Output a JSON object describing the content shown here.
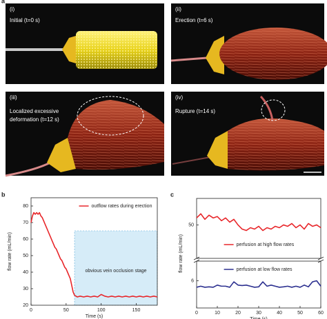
{
  "panel_labels": {
    "a": "a",
    "b": "b",
    "c": "c"
  },
  "photos": [
    {
      "label": "(i)",
      "caption": [
        "Initial (t=0 s)"
      ]
    },
    {
      "label": "(ii)",
      "caption": [
        "Erection (t=6 s)"
      ]
    },
    {
      "label": "(iii)",
      "caption": [
        "Localized excessive",
        "deformation (t=12 s)"
      ]
    },
    {
      "label": "(iv)",
      "caption": [
        "Rupture (t=14 s)"
      ]
    }
  ],
  "chart_data": [
    {
      "type": "line",
      "xlabel": "Time (s)",
      "ylabel": "flow rate (mL/min)",
      "x": [
        0,
        2,
        4,
        6,
        8,
        10,
        12,
        14,
        16,
        18,
        20,
        22,
        24,
        26,
        28,
        30,
        32,
        34,
        36,
        38,
        40,
        42,
        44,
        46,
        48,
        50,
        52,
        54,
        56,
        58,
        60,
        62,
        64,
        66,
        70,
        75,
        80,
        85,
        90,
        95,
        100,
        105,
        110,
        115,
        120,
        125,
        130,
        135,
        140,
        145,
        150,
        155,
        160,
        165,
        170,
        175,
        180
      ],
      "series": [
        {
          "name": "outflow rates during erection",
          "color": "#e8262a",
          "values": [
            70,
            74,
            76,
            75,
            76,
            75,
            76,
            74,
            73,
            71,
            69,
            67,
            65,
            63,
            61,
            59,
            57,
            55,
            54,
            52,
            50,
            48,
            47,
            45,
            43,
            42,
            40,
            38,
            36,
            32,
            28,
            26,
            25.5,
            25,
            25.5,
            25,
            25.5,
            25,
            25.5,
            25,
            26.5,
            25.5,
            25,
            25.5,
            25,
            25.5,
            25,
            25.5,
            25,
            25.5,
            25,
            25.5,
            25,
            25.5,
            25,
            25.5,
            25
          ]
        }
      ],
      "xlim": [
        0,
        180
      ],
      "xticks": [
        0,
        50,
        100,
        150
      ],
      "ylim": [
        20,
        85
      ],
      "yticks": [
        20,
        30,
        40,
        50,
        60,
        70,
        80
      ],
      "shaded_region": {
        "x": [
          62,
          180
        ],
        "y": [
          20,
          65
        ],
        "label": "obvious vein occlusion stage",
        "color": "#d6ecf8"
      },
      "legend": "upper right"
    },
    {
      "type": "line",
      "ylabel": "flow rate (mL/min)",
      "x": [
        0,
        2,
        4,
        6,
        8,
        10,
        12,
        14,
        16,
        18,
        20,
        22,
        24,
        26,
        28,
        30,
        32,
        34,
        36,
        38,
        40,
        42,
        44,
        46,
        48,
        50,
        52,
        54,
        56,
        58,
        60
      ],
      "series": [
        {
          "name": "perfusion at high flow rates",
          "color": "#e8262a",
          "values": [
            50.5,
            50.8,
            50.4,
            50.7,
            50.5,
            50.6,
            50.3,
            50.5,
            50.2,
            50.4,
            50.0,
            49.7,
            49.6,
            49.8,
            49.7,
            49.9,
            49.6,
            49.8,
            49.7,
            49.9,
            49.8,
            50.0,
            49.9,
            50.1,
            49.8,
            50.0,
            49.7,
            50.1,
            49.9,
            50.0,
            49.8
          ]
        }
      ],
      "xlim": [
        0,
        60
      ],
      "ylim": [
        47.6,
        51.9
      ],
      "yticks": [
        50
      ],
      "legend": "lower center"
    },
    {
      "type": "line",
      "xlabel": "Time (s)",
      "x": [
        0,
        2,
        4,
        6,
        8,
        10,
        12,
        14,
        16,
        18,
        20,
        22,
        24,
        26,
        28,
        30,
        32,
        34,
        36,
        38,
        40,
        42,
        44,
        46,
        48,
        50,
        52,
        54,
        56,
        58,
        60
      ],
      "series": [
        {
          "name": "perfusion at low flow rates",
          "color": "#2b2f8f",
          "values": [
            5.7,
            5.75,
            5.7,
            5.72,
            5.7,
            5.8,
            5.75,
            5.75,
            5.7,
            5.95,
            5.8,
            5.78,
            5.8,
            5.75,
            5.7,
            5.72,
            5.95,
            5.75,
            5.8,
            5.75,
            5.7,
            5.72,
            5.75,
            5.7,
            5.75,
            5.7,
            5.8,
            5.72,
            5.95,
            6.0,
            5.75
          ]
        }
      ],
      "xlim": [
        0,
        60
      ],
      "xticks": [
        0,
        10,
        20,
        30,
        40,
        50,
        60
      ],
      "ylim": [
        4.75,
        6.9
      ],
      "yticks": [
        6
      ],
      "legend": "upper center"
    }
  ]
}
